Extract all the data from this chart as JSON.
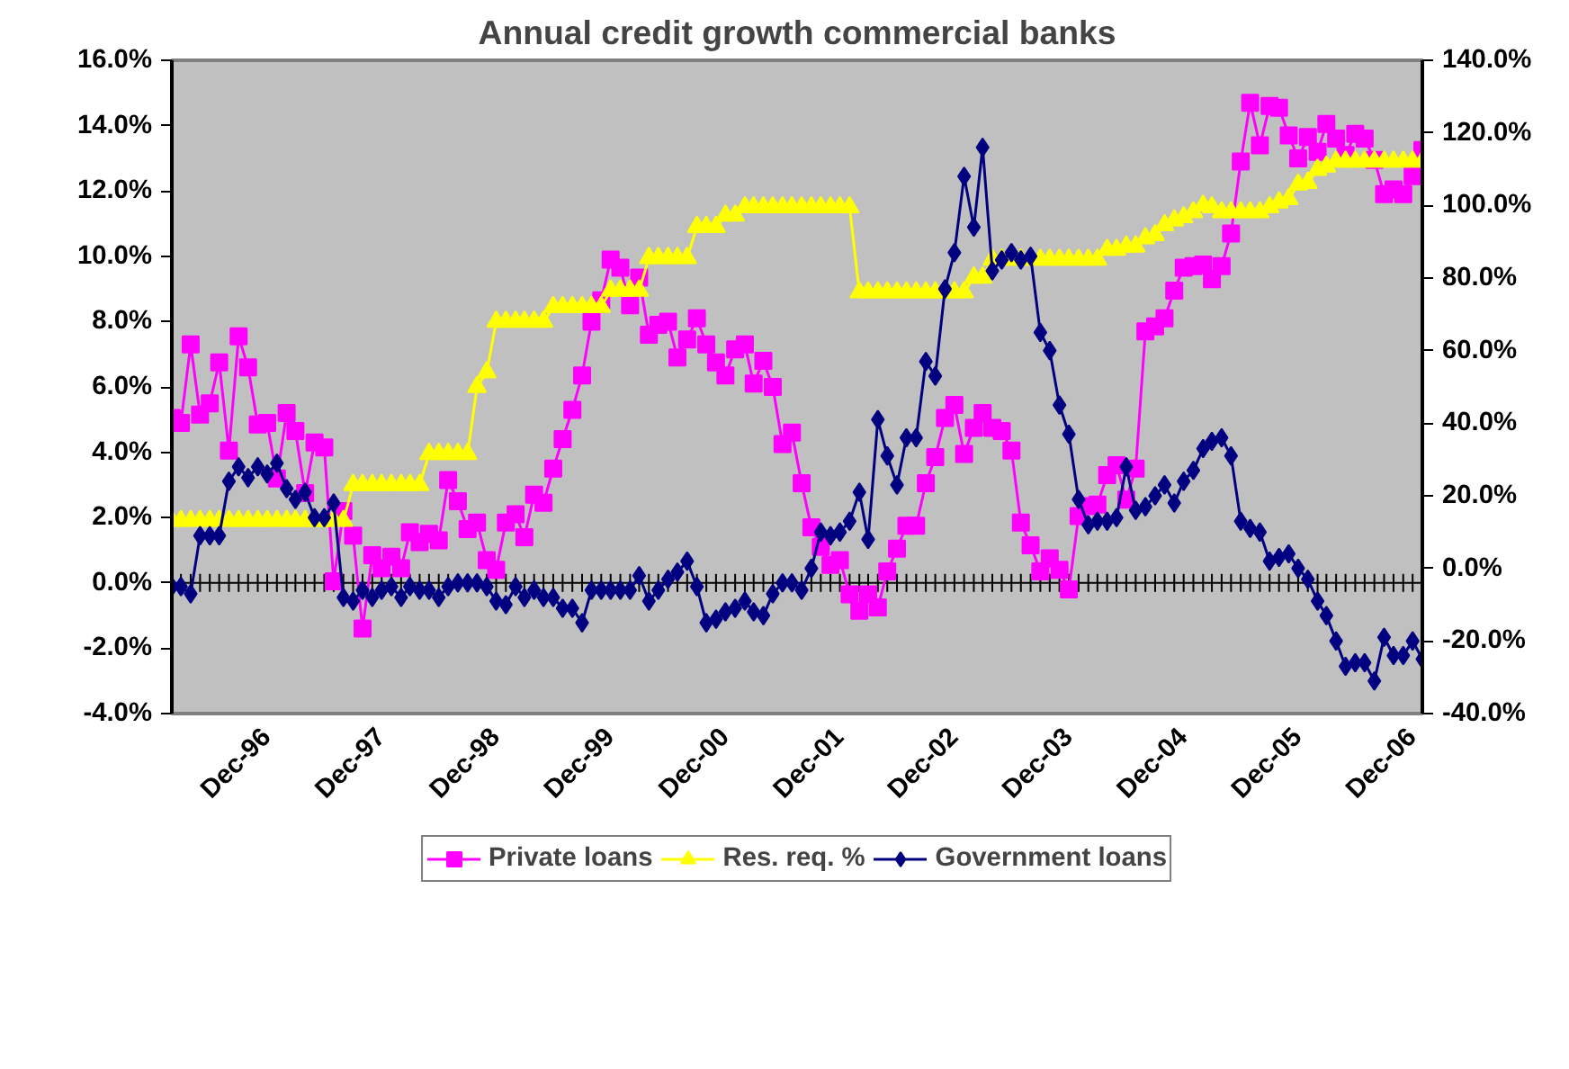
{
  "chart_data": {
    "type": "line",
    "title": "Annual credit growth commercial banks",
    "x": [
      "1996-02",
      "1996-03",
      "1996-04",
      "1996-05",
      "1996-06",
      "1996-07",
      "1996-08",
      "1996-09",
      "1996-10",
      "1996-11",
      "1996-12",
      "1997-01",
      "1997-02",
      "1997-03",
      "1997-04",
      "1997-05",
      "1997-06",
      "1997-07",
      "1997-08",
      "1997-09",
      "1997-10",
      "1997-11",
      "1997-12",
      "1998-01",
      "1998-02",
      "1998-03",
      "1998-04",
      "1998-05",
      "1998-06",
      "1998-07",
      "1998-08",
      "1998-09",
      "1998-10",
      "1998-11",
      "1998-12",
      "1999-01",
      "1999-02",
      "1999-03",
      "1999-04",
      "1999-05",
      "1999-06",
      "1999-07",
      "1999-08",
      "1999-09",
      "1999-10",
      "1999-11",
      "1999-12",
      "2000-01",
      "2000-02",
      "2000-03",
      "2000-04",
      "2000-05",
      "2000-06",
      "2000-07",
      "2000-08",
      "2000-09",
      "2000-10",
      "2000-11",
      "2000-12",
      "2001-01",
      "2001-02",
      "2001-03",
      "2001-04",
      "2001-05",
      "2001-06",
      "2001-07",
      "2001-08",
      "2001-09",
      "2001-10",
      "2001-11",
      "2001-12",
      "2002-01",
      "2002-02",
      "2002-03",
      "2002-04",
      "2002-05",
      "2002-06",
      "2002-07",
      "2002-08",
      "2002-09",
      "2002-10",
      "2002-11",
      "2002-12",
      "2003-01",
      "2003-02",
      "2003-03",
      "2003-04",
      "2003-05",
      "2003-06",
      "2003-07",
      "2003-08",
      "2003-09",
      "2003-10",
      "2003-11",
      "2003-12",
      "2004-01",
      "2004-02",
      "2004-03",
      "2004-04",
      "2004-05",
      "2004-06",
      "2004-07",
      "2004-08",
      "2004-09",
      "2004-10",
      "2004-11",
      "2004-12",
      "2005-01",
      "2005-02",
      "2005-03",
      "2005-04",
      "2005-05",
      "2005-06",
      "2005-07",
      "2005-08",
      "2005-09",
      "2005-10",
      "2005-11",
      "2005-12",
      "2006-01",
      "2006-02",
      "2006-03",
      "2006-04",
      "2006-05",
      "2006-06",
      "2006-07",
      "2006-08",
      "2006-09",
      "2006-10",
      "2006-11",
      "2006-12",
      "2007-01"
    ],
    "series": [
      {
        "name": "Private loans",
        "color": "#ff00ff",
        "marker": "square",
        "values": [
          5.05,
          4.9,
          7.3,
          5.15,
          5.5,
          6.75,
          4.05,
          7.55,
          6.6,
          4.85,
          4.9,
          3.2,
          5.2,
          4.65,
          2.75,
          4.3,
          4.15,
          0.05,
          2.2,
          1.45,
          -1.4,
          0.85,
          0.45,
          0.8,
          0.45,
          1.55,
          1.25,
          1.5,
          1.3,
          3.15,
          2.5,
          1.65,
          1.85,
          0.7,
          0.4,
          1.85,
          2.1,
          1.4,
          2.7,
          2.45,
          3.5,
          4.4,
          5.3,
          6.35,
          8.0,
          8.65,
          9.9,
          9.65,
          8.5,
          9.35,
          7.6,
          7.9,
          8.0,
          6.9,
          7.45,
          8.1,
          7.3,
          6.75,
          6.35,
          7.15,
          7.3,
          6.1,
          6.8,
          6.0,
          4.25,
          4.6,
          3.05,
          1.7,
          1.1,
          0.55,
          0.7,
          -0.35,
          -0.85,
          -0.35,
          -0.75,
          0.35,
          1.05,
          1.75,
          1.75,
          3.05,
          3.85,
          5.05,
          5.45,
          3.95,
          4.75,
          5.2,
          4.75,
          4.65,
          4.05,
          1.85,
          1.15,
          0.35,
          0.75,
          0.4,
          -0.2,
          2.05,
          2.35,
          2.4,
          3.3,
          3.6,
          2.55,
          3.5,
          7.7,
          7.85,
          8.1,
          8.95,
          9.65,
          9.7,
          9.75,
          9.3,
          9.7,
          10.7,
          12.9,
          14.7,
          13.4,
          14.6,
          14.55,
          13.7,
          13.0,
          13.65,
          13.2,
          14.05,
          13.6,
          13.1,
          13.75,
          13.6,
          12.95,
          11.9,
          12.05,
          11.9,
          12.45,
          13.25
        ]
      },
      {
        "name": "Res. req. %",
        "color": "#ffff00",
        "marker": "triangle",
        "values": [
          1.9,
          1.9,
          1.9,
          1.9,
          1.9,
          1.9,
          1.9,
          1.9,
          1.9,
          1.9,
          1.9,
          1.9,
          1.9,
          1.9,
          1.9,
          1.9,
          1.9,
          1.9,
          1.9,
          3.0,
          3.0,
          3.0,
          3.0,
          3.0,
          3.0,
          3.0,
          3.0,
          3.95,
          3.95,
          3.95,
          3.95,
          3.95,
          6.0,
          6.45,
          8.0,
          8.0,
          8.0,
          8.0,
          8.0,
          8.0,
          8.45,
          8.45,
          8.45,
          8.45,
          8.45,
          8.45,
          8.95,
          8.95,
          8.95,
          8.95,
          9.95,
          9.95,
          9.95,
          9.95,
          9.95,
          10.9,
          10.9,
          10.9,
          11.25,
          11.25,
          11.5,
          11.5,
          11.5,
          11.5,
          11.5,
          11.5,
          11.5,
          11.5,
          11.5,
          11.5,
          11.5,
          11.5,
          8.9,
          8.9,
          8.9,
          8.9,
          8.9,
          8.9,
          8.9,
          8.9,
          8.9,
          8.9,
          8.9,
          8.9,
          9.35,
          9.35,
          9.9,
          9.9,
          9.9,
          9.9,
          9.9,
          9.9,
          9.9,
          9.9,
          9.9,
          9.9,
          9.9,
          9.9,
          10.2,
          10.2,
          10.3,
          10.3,
          10.55,
          10.65,
          10.95,
          11.1,
          11.2,
          11.35,
          11.55,
          11.5,
          11.35,
          11.35,
          11.35,
          11.35,
          11.35,
          11.5,
          11.65,
          11.75,
          12.2,
          12.25,
          12.65,
          12.75,
          12.9,
          12.9,
          12.9,
          12.9,
          12.9,
          12.9,
          12.9,
          12.9,
          12.9,
          12.9
        ]
      },
      {
        "name": "Government loans",
        "color": "#000080",
        "marker": "diamond",
        "axis": "y2",
        "values": [
          -5,
          -5,
          -7,
          9,
          9,
          9,
          24,
          28,
          25,
          28,
          26,
          29,
          22,
          19,
          21,
          14,
          14,
          18,
          -8,
          -9,
          -6,
          -8,
          -6,
          -5,
          -8,
          -5,
          -6,
          -6,
          -8,
          -5,
          -4,
          -4,
          -4,
          -5,
          -9,
          -10,
          -5,
          -8,
          -6,
          -8,
          -8,
          -11,
          -11,
          -15,
          -6,
          -6,
          -6,
          -6,
          -6,
          -2,
          -9,
          -6,
          -3,
          -1,
          2,
          -5,
          -15,
          -14,
          -12,
          -11,
          -9,
          -12,
          -13,
          -7,
          -4,
          -4,
          -6,
          0,
          10,
          9,
          10,
          13,
          21,
          8,
          41,
          31,
          23,
          36,
          36,
          57,
          53,
          77,
          87,
          108,
          94,
          116,
          82,
          85,
          87,
          85,
          86,
          65,
          60,
          45,
          37,
          19,
          12,
          13,
          13,
          14,
          28,
          16,
          17,
          20,
          23,
          18,
          24,
          27,
          33,
          35,
          36,
          31,
          13,
          11,
          10,
          2,
          3,
          4,
          0,
          -3,
          -9,
          -13,
          -20,
          -27,
          -26,
          -26,
          -31,
          -19,
          -24,
          -24,
          -20,
          -25
        ]
      }
    ],
    "ylim": [
      -4,
      16
    ],
    "yticks": [
      {
        "value": -4,
        "label": "-4.0%"
      },
      {
        "value": -2,
        "label": "-2.0%"
      },
      {
        "value": 0,
        "label": "0.0%"
      },
      {
        "value": 2,
        "label": "2.0%"
      },
      {
        "value": 4,
        "label": "4.0%"
      },
      {
        "value": 6,
        "label": "6.0%"
      },
      {
        "value": 8,
        "label": "8.0%"
      },
      {
        "value": 10,
        "label": "10.0%"
      },
      {
        "value": 12,
        "label": "12.0%"
      },
      {
        "value": 14,
        "label": "14.0%"
      },
      {
        "value": 16,
        "label": "16.0%"
      }
    ],
    "y2lim": [
      -40,
      140
    ],
    "y2ticks": [
      {
        "value": -40,
        "label": "-40.0%"
      },
      {
        "value": -20,
        "label": "-20.0%"
      },
      {
        "value": 0,
        "label": "0.0%"
      },
      {
        "value": 20,
        "label": "20.0%"
      },
      {
        "value": 40,
        "label": "40.0%"
      },
      {
        "value": 60,
        "label": "60.0%"
      },
      {
        "value": 80,
        "label": "80.0%"
      },
      {
        "value": 100,
        "label": "100.0%"
      },
      {
        "value": 120,
        "label": "120.0%"
      },
      {
        "value": 140,
        "label": "140.0%"
      }
    ],
    "xlim": [
      "1996-02",
      "2007-01"
    ],
    "xticks": [
      {
        "value": "1996-12",
        "label": "Dec-96"
      },
      {
        "value": "1997-12",
        "label": "Dec-97"
      },
      {
        "value": "1998-12",
        "label": "Dec-98"
      },
      {
        "value": "1999-12",
        "label": "Dec-99"
      },
      {
        "value": "2000-12",
        "label": "Dec-00"
      },
      {
        "value": "2001-12",
        "label": "Dec-01"
      },
      {
        "value": "2002-12",
        "label": "Dec-02"
      },
      {
        "value": "2003-12",
        "label": "Dec-03"
      },
      {
        "value": "2004-12",
        "label": "Dec-04"
      },
      {
        "value": "2005-12",
        "label": "Dec-05"
      },
      {
        "value": "2006-12",
        "label": "Dec-06"
      }
    ],
    "ref_lines": [
      {
        "axis": "y",
        "value": 0,
        "color": "#000000"
      }
    ],
    "grid": false,
    "legend": "bottom",
    "line_style": "solid"
  }
}
